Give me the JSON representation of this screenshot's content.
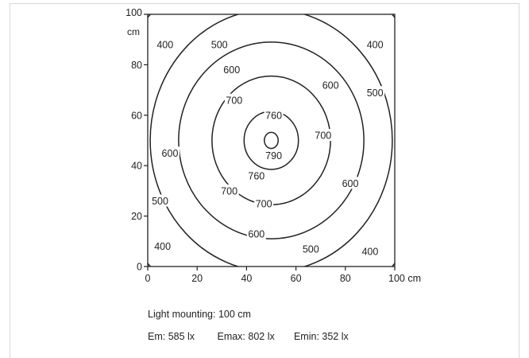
{
  "chart_data": {
    "type": "contour",
    "title": "",
    "xlabel": "",
    "ylabel": "",
    "x_unit": "cm",
    "y_unit": "cm",
    "xlim": [
      0,
      100
    ],
    "ylim": [
      0,
      100
    ],
    "x_ticks": [
      "0",
      "20",
      "40",
      "60",
      "80",
      "100 cm"
    ],
    "y_ticks": [
      "0",
      "20",
      "40",
      "60",
      "80",
      "100"
    ],
    "center": {
      "x": 50,
      "y": 50
    },
    "grid": false,
    "contours": [
      {
        "level": 790,
        "rx": 2.8,
        "ry": 3.2
      },
      {
        "level": 760,
        "rx": 11,
        "ry": 11.5
      },
      {
        "level": 700,
        "rx": 24,
        "ry": 25.5
      },
      {
        "level": 600,
        "rx": 37.5,
        "ry": 39
      },
      {
        "level": 500,
        "rx": 49,
        "ry": 52
      },
      {
        "level": 400,
        "rx": 68,
        "ry": 72
      }
    ],
    "contour_labels": [
      {
        "text": "400",
        "x": 7,
        "y": 88
      },
      {
        "text": "500",
        "x": 29,
        "y": 88
      },
      {
        "text": "400",
        "x": 92,
        "y": 88
      },
      {
        "text": "600",
        "x": 34,
        "y": 78
      },
      {
        "text": "600",
        "x": 74,
        "y": 72
      },
      {
        "text": "500",
        "x": 92,
        "y": 69
      },
      {
        "text": "700",
        "x": 35,
        "y": 66
      },
      {
        "text": "760",
        "x": 51,
        "y": 60
      },
      {
        "text": "700",
        "x": 71,
        "y": 52
      },
      {
        "text": "790",
        "x": 51,
        "y": 44
      },
      {
        "text": "600",
        "x": 9,
        "y": 45
      },
      {
        "text": "760",
        "x": 44,
        "y": 36
      },
      {
        "text": "600",
        "x": 82,
        "y": 33
      },
      {
        "text": "700",
        "x": 33,
        "y": 30
      },
      {
        "text": "700",
        "x": 47,
        "y": 25
      },
      {
        "text": "500",
        "x": 5,
        "y": 26
      },
      {
        "text": "600",
        "x": 44,
        "y": 13
      },
      {
        "text": "400",
        "x": 6,
        "y": 8
      },
      {
        "text": "500",
        "x": 66,
        "y": 7
      },
      {
        "text": "400",
        "x": 90,
        "y": 6
      }
    ]
  },
  "info": {
    "mounting": "Light mounting: 100 cm",
    "em": "Em: 585 lx",
    "emax": "Emax: 802 lx",
    "emin": "Emin: 352 lx"
  }
}
